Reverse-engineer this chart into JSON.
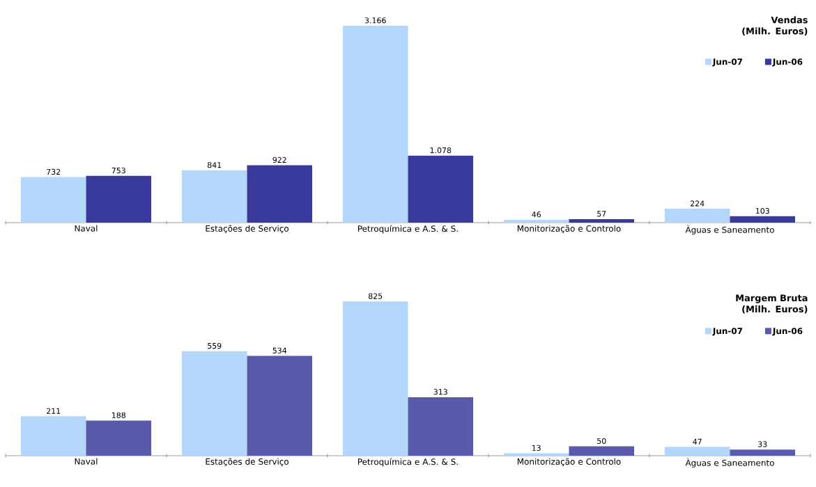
{
  "chart_data": [
    {
      "type": "bar",
      "title": "Vendas (Milh. Euros)",
      "categories": [
        "Naval",
        "Estações de Serviço",
        "Petroquímica e A.S. & S.",
        "Monitorização e Controlo",
        "Àguas e Saneamento"
      ],
      "legend": "top right",
      "series": [
        {
          "name": "Jun-07",
          "color": "#b4d6fa",
          "values": [
            732,
            841,
            3166,
            46,
            224
          ],
          "value_labels": [
            "732",
            "841",
            "3.166",
            "46",
            "224"
          ]
        },
        {
          "name": "Jun-06",
          "color": "#3a3a9c",
          "values": [
            753,
            922,
            1078,
            57,
            103
          ],
          "value_labels": [
            "753",
            "922",
            "1.078",
            "57",
            "103"
          ]
        }
      ]
    },
    {
      "type": "bar",
      "title": "Margem Bruta (Milh. Euros)",
      "categories": [
        "Naval",
        "Estações de Serviço",
        "Petroquímica e A.S. & S.",
        "Monitorização e Controlo",
        "Àguas e Saneamento"
      ],
      "legend": "top right",
      "series": [
        {
          "name": "Jun-07",
          "color": "#b4d6fa",
          "values": [
            211,
            559,
            825,
            13,
            47
          ],
          "value_labels": [
            "211",
            "559",
            "825",
            "13",
            "47"
          ]
        },
        {
          "name": "Jun-06",
          "color": "#5a5aaa",
          "values": [
            188,
            534,
            313,
            50,
            33
          ],
          "value_labels": [
            "188",
            "534",
            "313",
            "50",
            "33"
          ]
        }
      ]
    }
  ]
}
